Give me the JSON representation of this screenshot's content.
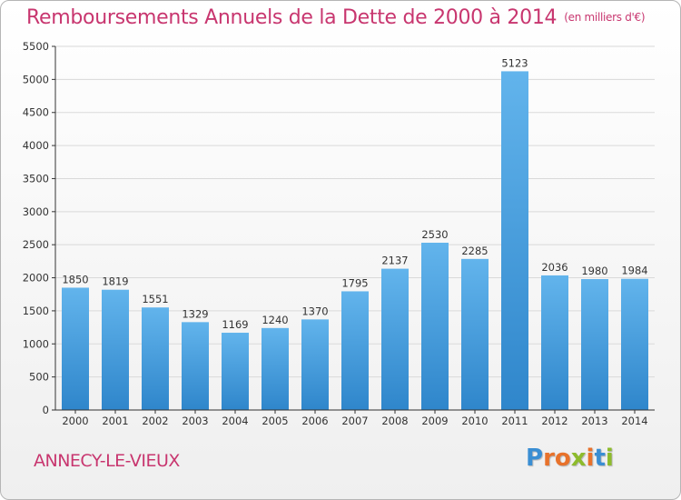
{
  "title": "Remboursements Annuels de la Dette de 2000 à 2014",
  "unit": "(en milliers d'€)",
  "commune": "ANNECY-LE-VIEUX",
  "brand": {
    "letters": [
      "P",
      "r",
      "o",
      "x",
      "i",
      "t",
      "i"
    ],
    "colors": [
      "#3a8ed3",
      "#e8722b",
      "#e8722b",
      "#8dbb2c",
      "#e8722b",
      "#3a8ed3",
      "#8dbb2c"
    ]
  },
  "colors": {
    "bar_top": "#62b4ec",
    "bar_bottom": "#2f86cb",
    "axis": "#333333",
    "grid": "#d9d9d9",
    "title": "#c8366f"
  },
  "chart_data": {
    "type": "bar",
    "title": "Remboursements Annuels de la Dette de 2000 à 2014",
    "categories": [
      "2000",
      "2001",
      "2002",
      "2003",
      "2004",
      "2005",
      "2006",
      "2007",
      "2008",
      "2009",
      "2010",
      "2011",
      "2012",
      "2013",
      "2014"
    ],
    "values": [
      1850,
      1819,
      1551,
      1329,
      1169,
      1240,
      1370,
      1795,
      2137,
      2530,
      2285,
      5123,
      2036,
      1980,
      1984
    ],
    "ylim": [
      0,
      5500
    ],
    "yticks": [
      0,
      500,
      1000,
      1500,
      2000,
      2500,
      3000,
      3500,
      4000,
      4500,
      5000,
      5500
    ],
    "grid": true,
    "data_labels": true
  }
}
